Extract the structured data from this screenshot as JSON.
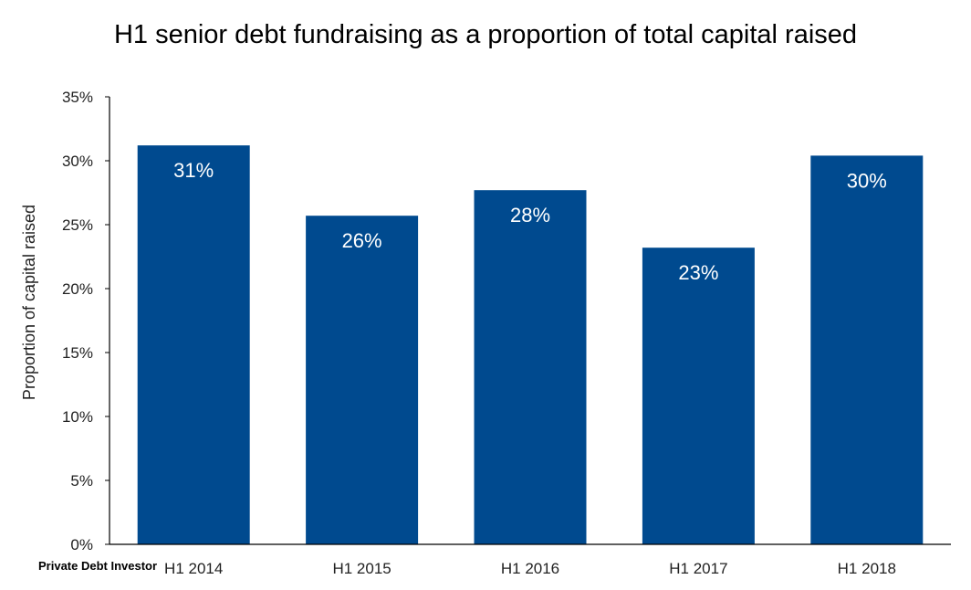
{
  "chart_data": {
    "type": "bar",
    "title": "H1 senior debt fundraising as a proportion of total capital raised",
    "xlabel": "",
    "ylabel": "Proportion of capital raised",
    "categories": [
      "H1 2014",
      "H1 2015",
      "H1 2016",
      "H1 2017",
      "H1 2018"
    ],
    "values": [
      31.2,
      25.7,
      27.7,
      23.2,
      30.4
    ],
    "data_labels": [
      "31%",
      "26%",
      "28%",
      "23%",
      "30%"
    ],
    "ylim": [
      0,
      35
    ],
    "yticks": [
      0,
      5,
      10,
      15,
      20,
      25,
      30,
      35
    ],
    "ytick_labels": [
      "0%",
      "5%",
      "10%",
      "15%",
      "20%",
      "25%",
      "30%",
      "35%"
    ],
    "grid": false,
    "legend": "none",
    "bar_color": "#004a8f",
    "source": "Private Debt Investor"
  }
}
